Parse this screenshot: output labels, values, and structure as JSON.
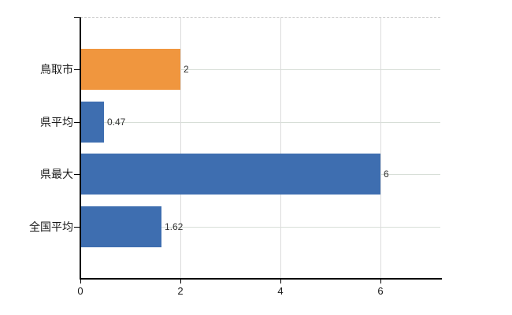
{
  "page": {
    "background": "#ffffff"
  },
  "chart_data": {
    "type": "bar",
    "orientation": "horizontal",
    "title": "",
    "xlabel": "",
    "ylabel": "",
    "categories": [
      "鳥取市",
      "県平均",
      "県最大",
      "全国平均"
    ],
    "values": [
      2,
      0.47,
      6,
      1.62
    ],
    "value_labels": [
      "2",
      "0.47",
      "6",
      "1.62"
    ],
    "bar_colors": [
      "#F0963E",
      "#3E6EB0",
      "#3E6EB0",
      "#3E6EB0"
    ],
    "highlighted_category": "鳥取市",
    "x_ticks": [
      0,
      2,
      4,
      6
    ],
    "x_tick_labels": [
      "0",
      "2",
      "4",
      "6"
    ],
    "xlim": [
      0,
      7.2
    ],
    "grid": true,
    "legend": false
  },
  "colors": {
    "bar_default": "#3E6EB0",
    "bar_highlight": "#F0963E",
    "grid_horizontal": "#D7DED7",
    "grid_vertical": "#DCDCDC",
    "plot_top_border": "#C8C8C8",
    "axis": "#000000",
    "category_text": "#1A1A1A",
    "value_text": "#333333"
  }
}
